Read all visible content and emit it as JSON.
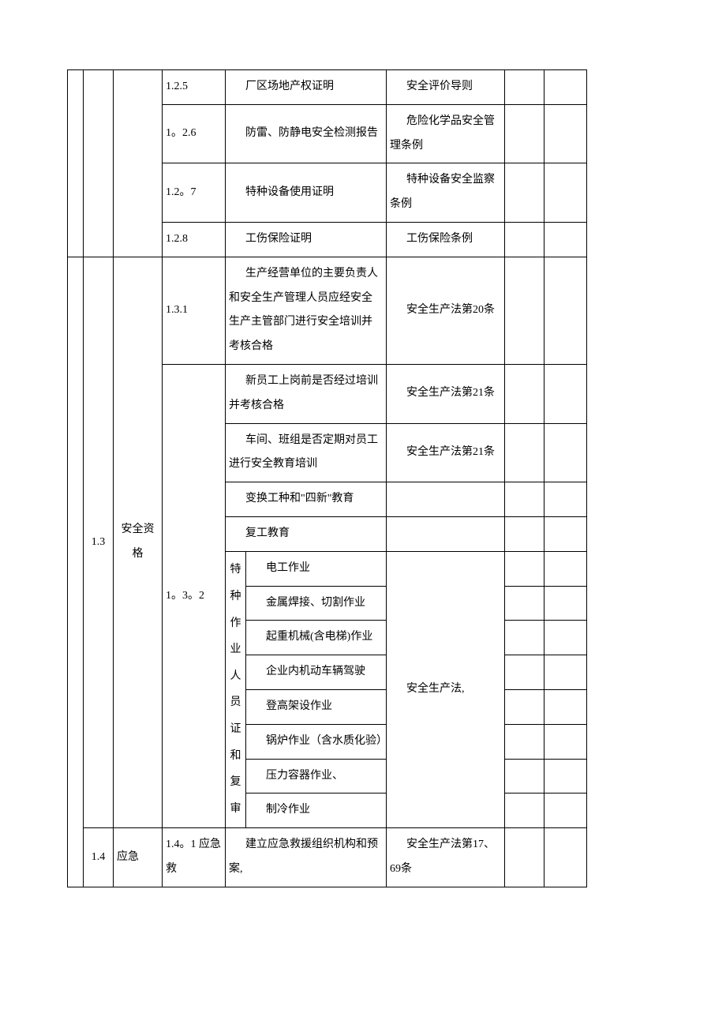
{
  "rows": {
    "r125": {
      "code": "1.2.5",
      "desc": "厂区场地产权证明",
      "basis": "安全评价导则"
    },
    "r126": {
      "code": "1。2.6",
      "desc": "防雷、防静电安全检测报告",
      "basis": "危险化学品安全管理条例"
    },
    "r127": {
      "code": "1.2。7",
      "desc": "特种设备使用证明",
      "basis": "特种设备安全监察条例"
    },
    "r128": {
      "code": "1.2.8",
      "desc": "工伤保险证明",
      "basis": "工伤保险条例"
    },
    "r131": {
      "code": "1.3.1",
      "desc": "生产经营单位的主要负责人和安全生产管理人员应经安全生产主管部门进行安全培训并考核合格",
      "basis": "安全生产法第20条"
    },
    "r132a": {
      "desc": "新员工上岗前是否经过培训并考核合格",
      "basis": "安全生产法第21条"
    },
    "r132b": {
      "desc": "车间、班组是否定期对员工进行安全教育培训",
      "basis": "安全生产法第21条"
    },
    "r132c": {
      "desc": "变换工种和\"四新\"教育"
    },
    "r132d": {
      "desc": "复工教育"
    },
    "r132code": "1。3。2",
    "sec13": {
      "num": "1.3",
      "title": "安全资格"
    },
    "special_header": "特种作业人员证和复审",
    "special_items": {
      "i1": "电工作业",
      "i2": "金属焊接、切割作业",
      "i3": "起重机械(含电梯)作业",
      "i4": "企业内机动车辆驾驶",
      "i5": "登高架设作业",
      "i6": "锅炉作业（含水质化验）",
      "i7": "压力容器作业、",
      "i8": "制冷作业"
    },
    "special_basis": "安全生产法,",
    "sec14": {
      "num": "1.4",
      "title": "应急",
      "code": "1.4。1 应急救",
      "desc": "建立应急救援组织机构和预案,",
      "basis": "安全生产法第17、69条"
    }
  }
}
